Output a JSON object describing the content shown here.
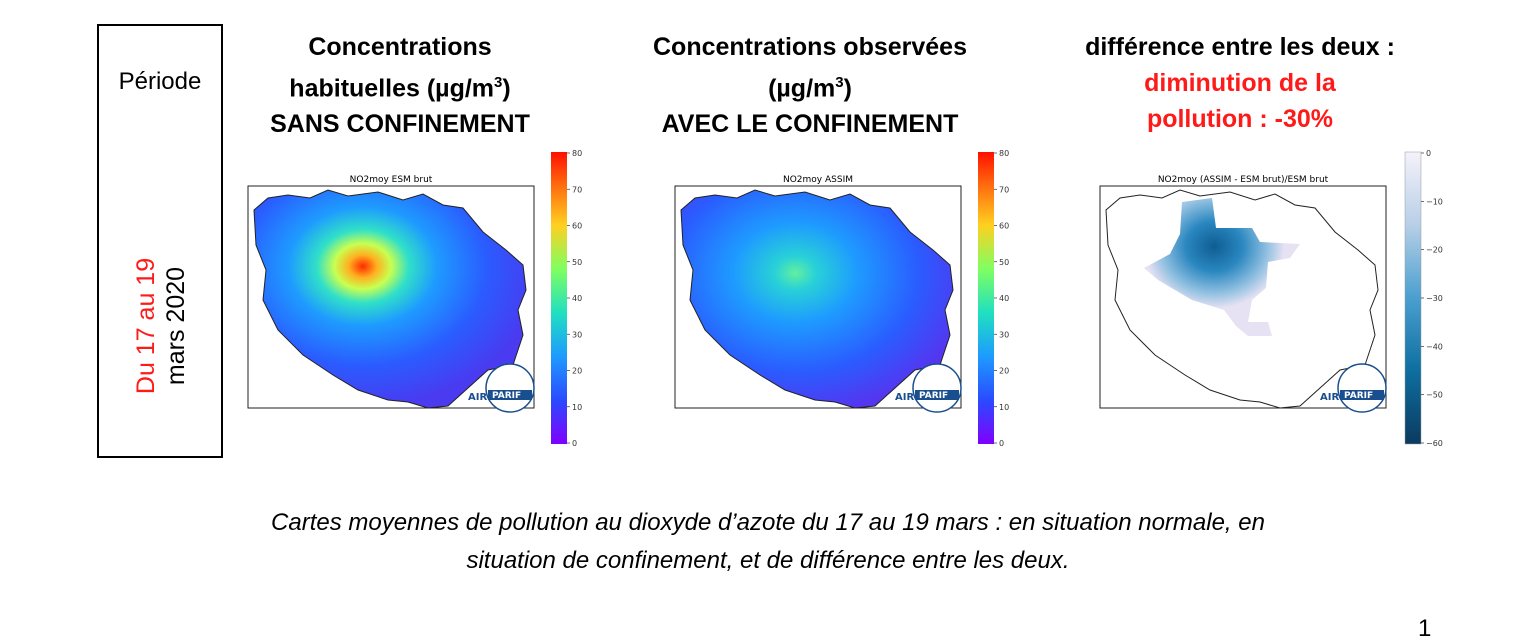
{
  "period_box": {
    "label": "Période",
    "dates_line1": "Du 17 au 19",
    "dates_line2": "mars 2020"
  },
  "headings": {
    "col1": {
      "line1": "Concentrations",
      "line2_text": "habituelles (µg/m",
      "line2_sup": "3",
      "line2_end": ")",
      "line3": "SANS CONFINEMENT"
    },
    "col2": {
      "line1": "Concentrations observées",
      "line2_text": "(µg/m",
      "line2_sup": "3",
      "line2_end": ")",
      "line3": "AVEC LE CONFINEMENT"
    },
    "col3": {
      "line1": "différence entre les deux :",
      "line2": "diminution de la",
      "line3": "pollution : -30%"
    }
  },
  "maps": [
    {
      "title": "NO2moy ESM brut",
      "colorbar": "jet",
      "ticks": [
        "80",
        "70",
        "60",
        "50",
        "40",
        "30",
        "20",
        "10",
        "0"
      ]
    },
    {
      "title": "NO2moy ASSIM",
      "colorbar": "jet",
      "ticks": [
        "80",
        "70",
        "60",
        "50",
        "40",
        "30",
        "20",
        "10",
        "0"
      ]
    },
    {
      "title": "NO2moy (ASSIM - ESM brut)/ESM brut",
      "colorbar": "blues",
      "ticks": [
        "0",
        "−10",
        "−20",
        "−30",
        "−40",
        "−50",
        "−60"
      ]
    }
  ],
  "logo": {
    "left": "AIR",
    "right": "PARIF"
  },
  "caption": {
    "line1": "Cartes moyennes de pollution au dioxyde d’azote du 17 au 19 mars : en situation normale, en",
    "line2": "situation de confinement, et de différence entre les deux."
  },
  "page_number": "1",
  "colors": {
    "red_text": "#ff1a1a"
  }
}
